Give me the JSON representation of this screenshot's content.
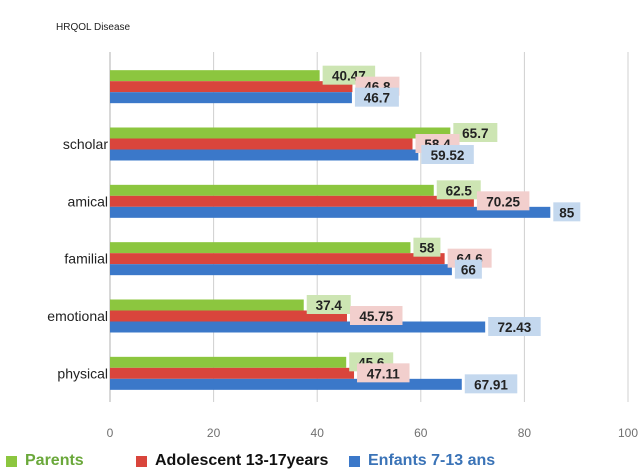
{
  "title": "HRQOL Disease",
  "chart_data": {
    "type": "bar",
    "orientation": "horizontal",
    "categories": [
      "",
      "scholar",
      "amical",
      "familial",
      "emotional",
      "physical"
    ],
    "series": [
      {
        "name": "Parents",
        "color": "#8cc63f",
        "label_bg": "#cde5b3",
        "values": [
          40.47,
          65.7,
          62.5,
          58,
          37.4,
          45.6
        ]
      },
      {
        "name": "Adolescent 13-17years",
        "color": "#d9453c",
        "label_bg": "#f2cfcd",
        "values": [
          46.8,
          58.4,
          70.25,
          64.6,
          45.75,
          47.11
        ]
      },
      {
        "name": "Enfants 7-13 ans",
        "color": "#3b78c9",
        "label_bg": "#c4d8ee",
        "values": [
          46.7,
          59.52,
          85,
          66,
          72.43,
          67.91
        ]
      }
    ],
    "value_labels": [
      [
        "40.47",
        "65.7",
        "62.5",
        "58",
        "37.4",
        "45.6"
      ],
      [
        "46.8",
        "58.4",
        "70.25",
        "64.6",
        "45.75",
        "47.11"
      ],
      [
        "46.7",
        "59.52",
        "85",
        "66",
        "72.43",
        "67.91"
      ]
    ],
    "xticks": [
      "0",
      "20",
      "40",
      "60",
      "80",
      "100"
    ],
    "xlim": [
      0,
      100
    ],
    "grid": true,
    "legend_position": "bottom"
  }
}
